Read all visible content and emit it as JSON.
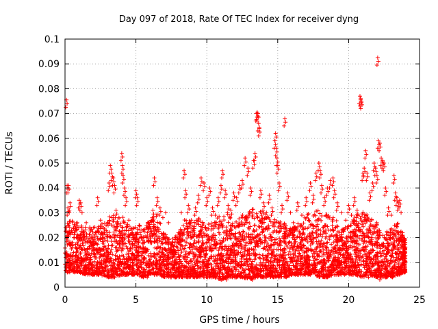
{
  "chart_data": {
    "type": "scatter",
    "title": "Day 097 of 2018, Rate Of TEC Index for receiver dyng",
    "xlabel": "GPS time / hours",
    "ylabel": "ROTI / TECUs",
    "xlim": [
      0,
      25
    ],
    "ylim": [
      0,
      0.1
    ],
    "xticks": [
      0,
      5,
      10,
      15,
      20,
      25
    ],
    "yticks": [
      0,
      0.01,
      0.02,
      0.03,
      0.04,
      0.05,
      0.06,
      0.07,
      0.08,
      0.09,
      0.1
    ],
    "grid": true,
    "marker": "+",
    "color": "#ff0000",
    "series": [
      {
        "name": "ROTI",
        "points": [
          [
            0.1,
            0.0755
          ],
          [
            0.15,
            0.041
          ],
          [
            0.25,
            0.041
          ],
          [
            0.2,
            0.032
          ],
          [
            0.3,
            0.03
          ],
          [
            0.35,
            0.034
          ],
          [
            0.1,
            0.024
          ],
          [
            0.2,
            0.019
          ],
          [
            0.4,
            0.017
          ],
          [
            0.5,
            0.016
          ],
          [
            0.6,
            0.014
          ],
          [
            0.8,
            0.02
          ],
          [
            1.0,
            0.035
          ],
          [
            1.1,
            0.034
          ],
          [
            1.2,
            0.03
          ],
          [
            1.3,
            0.022
          ],
          [
            1.5,
            0.026
          ],
          [
            1.7,
            0.019
          ],
          [
            2.0,
            0.016
          ],
          [
            2.2,
            0.022
          ],
          [
            2.3,
            0.036
          ],
          [
            2.5,
            0.027
          ],
          [
            2.7,
            0.02
          ],
          [
            2.9,
            0.025
          ],
          [
            3.1,
            0.042
          ],
          [
            3.2,
            0.049
          ],
          [
            3.3,
            0.046
          ],
          [
            3.4,
            0.044
          ],
          [
            3.5,
            0.041
          ],
          [
            3.6,
            0.031
          ],
          [
            3.8,
            0.028
          ],
          [
            4.0,
            0.054
          ],
          [
            4.05,
            0.049
          ],
          [
            4.1,
            0.045
          ],
          [
            4.2,
            0.04
          ],
          [
            4.3,
            0.036
          ],
          [
            4.5,
            0.027
          ],
          [
            4.8,
            0.02
          ],
          [
            5.0,
            0.039
          ],
          [
            5.1,
            0.036
          ],
          [
            5.3,
            0.022
          ],
          [
            5.6,
            0.018
          ],
          [
            5.9,
            0.026
          ],
          [
            6.2,
            0.031
          ],
          [
            6.3,
            0.044
          ],
          [
            6.5,
            0.036
          ],
          [
            6.7,
            0.032
          ],
          [
            6.9,
            0.028
          ],
          [
            7.1,
            0.03
          ],
          [
            7.3,
            0.026
          ],
          [
            7.6,
            0.018
          ],
          [
            8.0,
            0.022
          ],
          [
            8.2,
            0.03
          ],
          [
            8.4,
            0.047
          ],
          [
            8.5,
            0.039
          ],
          [
            8.7,
            0.033
          ],
          [
            8.9,
            0.027
          ],
          [
            9.2,
            0.032
          ],
          [
            9.4,
            0.037
          ],
          [
            9.6,
            0.044
          ],
          [
            9.8,
            0.042
          ],
          [
            10.0,
            0.036
          ],
          [
            10.2,
            0.04
          ],
          [
            10.4,
            0.032
          ],
          [
            10.6,
            0.029
          ],
          [
            10.8,
            0.036
          ],
          [
            11.0,
            0.041
          ],
          [
            11.1,
            0.047
          ],
          [
            11.3,
            0.039
          ],
          [
            11.5,
            0.033
          ],
          [
            11.7,
            0.031
          ],
          [
            11.9,
            0.038
          ],
          [
            12.1,
            0.036
          ],
          [
            12.3,
            0.041
          ],
          [
            12.5,
            0.043
          ],
          [
            12.7,
            0.052
          ],
          [
            12.9,
            0.048
          ],
          [
            13.1,
            0.04
          ],
          [
            13.3,
            0.051
          ],
          [
            13.4,
            0.054
          ],
          [
            13.5,
            0.07
          ],
          [
            13.55,
            0.0705
          ],
          [
            13.6,
            0.07
          ],
          [
            13.65,
            0.066
          ],
          [
            13.7,
            0.064
          ],
          [
            13.8,
            0.039
          ],
          [
            14.0,
            0.034
          ],
          [
            14.2,
            0.03
          ],
          [
            14.4,
            0.037
          ],
          [
            14.6,
            0.032
          ],
          [
            14.8,
            0.059
          ],
          [
            14.85,
            0.062
          ],
          [
            14.9,
            0.056
          ],
          [
            14.95,
            0.052
          ],
          [
            15.0,
            0.049
          ],
          [
            15.1,
            0.042
          ],
          [
            15.3,
            0.033
          ],
          [
            15.5,
            0.068
          ],
          [
            15.7,
            0.038
          ],
          [
            15.9,
            0.03
          ],
          [
            16.1,
            0.026
          ],
          [
            16.4,
            0.034
          ],
          [
            16.7,
            0.029
          ],
          [
            17.0,
            0.036
          ],
          [
            17.3,
            0.042
          ],
          [
            17.5,
            0.037
          ],
          [
            17.7,
            0.046
          ],
          [
            17.9,
            0.05
          ],
          [
            18.0,
            0.047
          ],
          [
            18.1,
            0.041
          ],
          [
            18.3,
            0.036
          ],
          [
            18.5,
            0.04
          ],
          [
            18.7,
            0.043
          ],
          [
            18.9,
            0.044
          ],
          [
            19.0,
            0.039
          ],
          [
            19.2,
            0.034
          ],
          [
            19.5,
            0.03
          ],
          [
            19.8,
            0.027
          ],
          [
            20.0,
            0.033
          ],
          [
            20.2,
            0.029
          ],
          [
            20.4,
            0.036
          ],
          [
            20.6,
            0.031
          ],
          [
            20.8,
            0.077
          ],
          [
            20.85,
            0.076
          ],
          [
            20.9,
            0.075
          ],
          [
            21.0,
            0.046
          ],
          [
            21.1,
            0.048
          ],
          [
            21.2,
            0.055
          ],
          [
            21.3,
            0.046
          ],
          [
            21.5,
            0.038
          ],
          [
            21.7,
            0.042
          ],
          [
            21.8,
            0.05
          ],
          [
            21.9,
            0.048
          ],
          [
            22.0,
            0.045
          ],
          [
            22.05,
            0.0925
          ],
          [
            22.1,
            0.059
          ],
          [
            22.2,
            0.058
          ],
          [
            22.3,
            0.052
          ],
          [
            22.4,
            0.051
          ],
          [
            22.5,
            0.05
          ],
          [
            22.6,
            0.04
          ],
          [
            22.8,
            0.032
          ],
          [
            23.0,
            0.029
          ],
          [
            23.2,
            0.045
          ],
          [
            23.3,
            0.038
          ],
          [
            23.4,
            0.036
          ],
          [
            23.5,
            0.034
          ],
          [
            23.6,
            0.035
          ],
          [
            23.7,
            0.03
          ],
          [
            23.8,
            0.022
          ],
          [
            0.5,
            0.011
          ],
          [
            0.9,
            0.009
          ],
          [
            1.4,
            0.008
          ],
          [
            1.8,
            0.012
          ],
          [
            2.1,
            0.006
          ],
          [
            2.4,
            0.01
          ],
          [
            2.8,
            0.008
          ],
          [
            3.0,
            0.005
          ],
          [
            3.3,
            0.007
          ],
          [
            3.7,
            0.009
          ],
          [
            4.4,
            0.006
          ],
          [
            5.2,
            0.008
          ],
          [
            5.8,
            0.004
          ],
          [
            6.6,
            0.007
          ],
          [
            7.2,
            0.005
          ],
          [
            7.8,
            0.006
          ],
          [
            8.6,
            0.004
          ],
          [
            9.3,
            0.005
          ],
          [
            10.3,
            0.004
          ],
          [
            11.4,
            0.003
          ],
          [
            12.2,
            0.005
          ],
          [
            13.2,
            0.003
          ],
          [
            14.3,
            0.005
          ],
          [
            15.6,
            0.004
          ],
          [
            16.6,
            0.005
          ],
          [
            17.4,
            0.006
          ],
          [
            18.4,
            0.004
          ],
          [
            19.6,
            0.006
          ],
          [
            20.3,
            0.005
          ],
          [
            21.4,
            0.004
          ],
          [
            22.2,
            0.003
          ],
          [
            23.1,
            0.004
          ],
          [
            23.6,
            0.005
          ]
        ],
        "dense_band": [
          [
            0.0,
            0.006,
            0.026
          ],
          [
            0.5,
            0.006,
            0.027
          ],
          [
            1.0,
            0.006,
            0.026
          ],
          [
            1.5,
            0.005,
            0.024
          ],
          [
            2.0,
            0.005,
            0.025
          ],
          [
            2.5,
            0.005,
            0.026
          ],
          [
            3.0,
            0.004,
            0.028
          ],
          [
            3.5,
            0.004,
            0.03
          ],
          [
            4.0,
            0.005,
            0.029
          ],
          [
            4.5,
            0.005,
            0.025
          ],
          [
            5.0,
            0.005,
            0.026
          ],
          [
            5.5,
            0.004,
            0.024
          ],
          [
            6.0,
            0.005,
            0.027
          ],
          [
            6.5,
            0.005,
            0.03
          ],
          [
            7.0,
            0.004,
            0.022
          ],
          [
            7.5,
            0.004,
            0.019
          ],
          [
            8.0,
            0.004,
            0.022
          ],
          [
            8.5,
            0.004,
            0.028
          ],
          [
            9.0,
            0.004,
            0.026
          ],
          [
            9.5,
            0.004,
            0.028
          ],
          [
            10.0,
            0.004,
            0.025
          ],
          [
            10.5,
            0.004,
            0.027
          ],
          [
            11.0,
            0.003,
            0.029
          ],
          [
            11.5,
            0.004,
            0.03
          ],
          [
            12.0,
            0.004,
            0.026
          ],
          [
            12.5,
            0.004,
            0.029
          ],
          [
            13.0,
            0.003,
            0.031
          ],
          [
            13.5,
            0.004,
            0.032
          ],
          [
            14.0,
            0.004,
            0.03
          ],
          [
            14.5,
            0.004,
            0.028
          ],
          [
            15.0,
            0.004,
            0.027
          ],
          [
            15.5,
            0.004,
            0.026
          ],
          [
            16.0,
            0.005,
            0.024
          ],
          [
            16.5,
            0.005,
            0.026
          ],
          [
            17.0,
            0.005,
            0.029
          ],
          [
            17.5,
            0.005,
            0.032
          ],
          [
            18.0,
            0.004,
            0.031
          ],
          [
            18.5,
            0.004,
            0.03
          ],
          [
            19.0,
            0.005,
            0.028
          ],
          [
            19.5,
            0.005,
            0.024
          ],
          [
            20.0,
            0.005,
            0.025
          ],
          [
            20.5,
            0.005,
            0.029
          ],
          [
            21.0,
            0.004,
            0.031
          ],
          [
            21.5,
            0.005,
            0.028
          ],
          [
            22.0,
            0.004,
            0.026
          ],
          [
            22.5,
            0.004,
            0.022
          ],
          [
            23.0,
            0.004,
            0.024
          ],
          [
            23.5,
            0.005,
            0.026
          ],
          [
            23.9,
            0.006,
            0.02
          ]
        ]
      }
    ]
  }
}
